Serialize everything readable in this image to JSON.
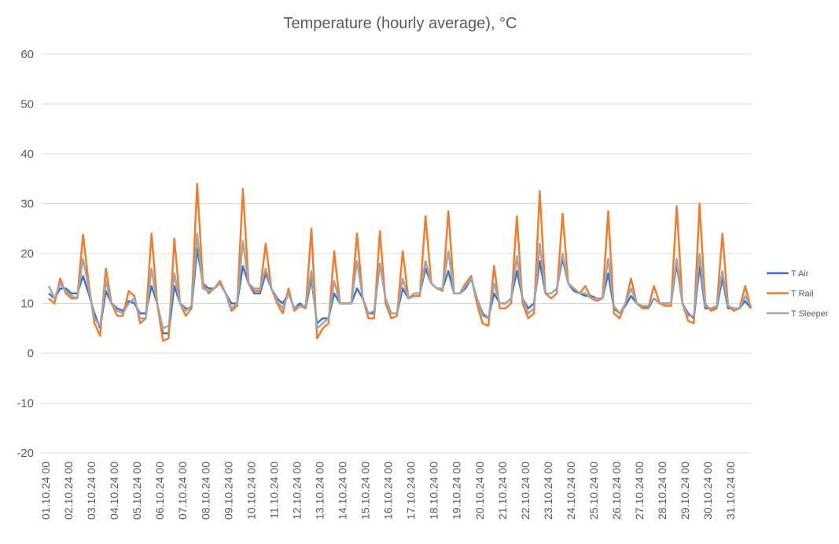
{
  "chart_data": {
    "type": "line",
    "title": "Temperature (hourly average), °C",
    "categories": [
      "01.10.24 00",
      null,
      null,
      null,
      "02.10.24 00",
      null,
      null,
      null,
      "03.10.24 00",
      null,
      null,
      null,
      "04.10.24 00",
      null,
      null,
      null,
      "05.10.24 00",
      null,
      null,
      null,
      "06.10.24 00",
      null,
      null,
      null,
      "07.10.24 00",
      null,
      null,
      null,
      "08.10.24 00",
      null,
      null,
      null,
      "09.10.24 00",
      null,
      null,
      null,
      "10.10.24 00",
      null,
      null,
      null,
      "11.10.24 00",
      null,
      null,
      null,
      "12.10.24 00",
      null,
      null,
      null,
      "13.10.24 00",
      null,
      null,
      null,
      "14.10.24 00",
      null,
      null,
      null,
      "15.10.24 00",
      null,
      null,
      null,
      "16.10.24 00",
      null,
      null,
      null,
      "17.10.24 00",
      null,
      null,
      null,
      "18.10.24 00",
      null,
      null,
      null,
      "19.10.24 00",
      null,
      null,
      null,
      "20.10.24 00",
      null,
      null,
      null,
      "21.10.24 00",
      null,
      null,
      null,
      "22.10.24 00",
      null,
      null,
      null,
      "23.10.24 00",
      null,
      null,
      null,
      "24.10.24 00",
      null,
      null,
      null,
      "25.10.24 00",
      null,
      null,
      null,
      "26.10.24 00",
      null,
      null,
      null,
      "27.10.24 00",
      null,
      null,
      null,
      "28.10.24 00",
      null,
      null,
      null,
      "29.10.24 00",
      null,
      null,
      null,
      "30.10.24 00",
      null,
      null,
      null,
      "31.10.24 00",
      null,
      null,
      null
    ],
    "series": [
      {
        "name": "T Air",
        "color": "#4472c4",
        "values": [
          12,
          11,
          13,
          13,
          12,
          12,
          15.5,
          12,
          8,
          5,
          12.5,
          10,
          9,
          8.5,
          10.5,
          10,
          8,
          8,
          13.5,
          10,
          4,
          4,
          13.5,
          10,
          9,
          9,
          21,
          14,
          13,
          13,
          14,
          12,
          10,
          10,
          17.5,
          14,
          12,
          12,
          16,
          13,
          11,
          10,
          12,
          9,
          10,
          9,
          15,
          6,
          7,
          7,
          12,
          10,
          10,
          10,
          13,
          11,
          8,
          8,
          18,
          11,
          8,
          8,
          13,
          11,
          12,
          12,
          17,
          14,
          13,
          13,
          16.5,
          12,
          12,
          13,
          15,
          11,
          8,
          7,
          12,
          10,
          10,
          11,
          16.5,
          11,
          9,
          10,
          18.5,
          12,
          12,
          13,
          19,
          14,
          12.5,
          12,
          11.5,
          11.5,
          11,
          11,
          16,
          9,
          8,
          9.5,
          11.5,
          10,
          9.5,
          9,
          11,
          10,
          10,
          10,
          18,
          10,
          8,
          7,
          17.5,
          9,
          9,
          9,
          15,
          9,
          9,
          9,
          10.5,
          9
        ]
      },
      {
        "name": "T Rail",
        "color": "#ed7d31",
        "values": [
          11,
          10,
          15,
          12,
          11,
          11,
          23.8,
          14,
          6,
          3.5,
          17,
          10,
          7.5,
          7.5,
          12.5,
          11.5,
          6,
          7,
          24,
          10,
          2.5,
          3,
          23,
          10,
          7.5,
          9,
          34,
          14,
          12,
          13,
          14.5,
          12,
          8.5,
          9.5,
          33,
          14,
          12.5,
          12.5,
          22,
          13,
          10,
          8,
          13,
          8.5,
          9.5,
          9,
          25,
          3,
          5,
          6,
          20.5,
          10,
          10,
          10,
          24,
          11,
          7,
          7,
          24.5,
          10,
          7,
          7.5,
          20.5,
          11,
          11.5,
          11.5,
          27.5,
          14,
          13,
          12.5,
          28.5,
          12,
          12,
          14,
          15.5,
          10,
          6,
          5.5,
          17.5,
          9,
          9,
          10,
          27.5,
          10,
          7,
          8,
          32.5,
          12,
          11,
          12,
          28,
          14,
          13,
          12,
          13.5,
          11,
          10.5,
          11,
          28.5,
          8,
          7,
          10,
          15,
          10,
          9,
          9,
          13.5,
          10,
          9.5,
          9.5,
          29.5,
          10,
          6.5,
          6,
          30,
          10,
          8.5,
          9,
          24,
          9.5,
          8.5,
          9,
          13.5,
          9
        ]
      },
      {
        "name": "T Sleeper",
        "color": "#a5a5a5",
        "values": [
          13.5,
          11,
          14,
          12.5,
          11.5,
          11,
          19,
          13,
          7,
          5.5,
          14.5,
          10,
          8.5,
          8,
          10,
          11,
          7,
          7,
          17,
          10,
          5,
          5.5,
          16,
          10,
          8.5,
          9.5,
          24,
          13,
          12.5,
          13,
          14,
          12,
          9,
          10,
          22.5,
          14,
          13,
          13,
          17,
          13,
          10.5,
          9,
          12,
          9,
          9.5,
          9.5,
          16.5,
          5,
          6,
          7,
          14.5,
          10,
          10,
          10,
          18.5,
          11,
          8,
          8.5,
          18,
          11,
          8,
          8,
          15,
          11,
          12,
          12,
          18.5,
          14,
          13,
          13,
          20.5,
          12,
          12,
          13.5,
          15,
          11,
          7.5,
          7,
          14,
          10,
          10,
          11,
          19.5,
          11,
          8,
          9,
          22,
          12,
          12,
          13,
          20,
          14,
          13,
          12,
          12,
          11,
          11,
          11,
          19,
          9.5,
          8,
          10,
          13,
          10,
          9.5,
          9.5,
          11,
          10,
          10,
          10,
          19,
          10,
          7.5,
          7.5,
          20,
          9.5,
          9,
          9.5,
          16.5,
          9.5,
          9,
          9,
          11.5,
          9.5
        ]
      }
    ],
    "ylim": [
      -20,
      60
    ],
    "yticks": [
      -20,
      -10,
      0,
      10,
      20,
      30,
      40,
      50,
      60
    ],
    "grid": true,
    "legend": "right"
  }
}
